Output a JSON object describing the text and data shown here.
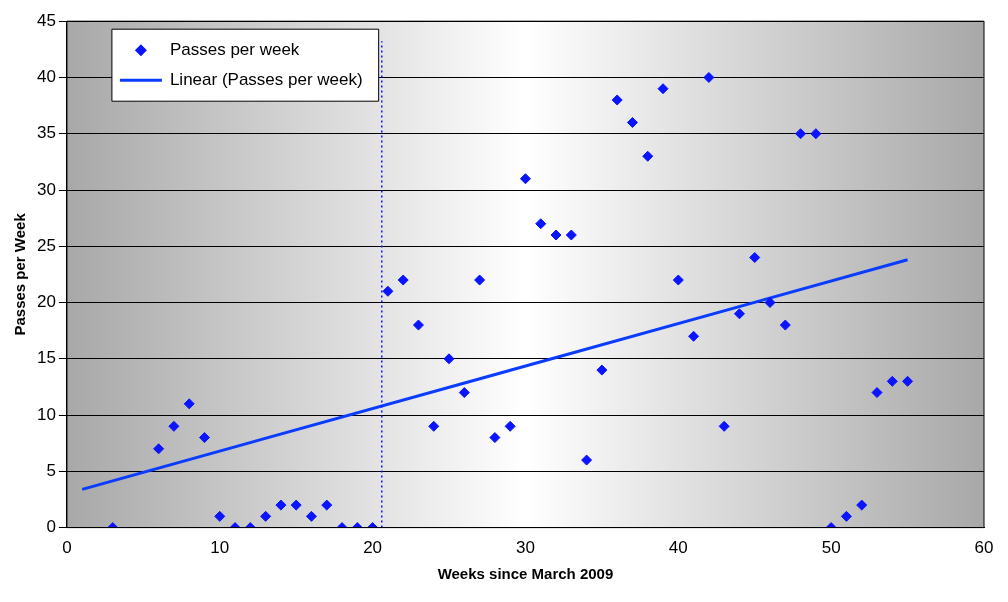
{
  "chart_data": {
    "type": "scatter",
    "xlabel": "Weeks since March 2009",
    "ylabel": "Passes per Week",
    "xlim": [
      0,
      60
    ],
    "xticks": [
      0,
      10,
      20,
      30,
      40,
      50,
      60
    ],
    "ylim": [
      0,
      45
    ],
    "yticks": [
      0,
      5,
      10,
      15,
      20,
      25,
      30,
      35,
      40,
      45
    ],
    "grid": "y",
    "legend": "top left",
    "series": [
      {
        "name": "Passes per week",
        "marker": "diamond",
        "color": "#0a14ff",
        "x": [
          3,
          6,
          7,
          8,
          9,
          10,
          11,
          12,
          13,
          14,
          15,
          16,
          17,
          18,
          19,
          20,
          21,
          22,
          23,
          24,
          25,
          26,
          27,
          28,
          29,
          30,
          31,
          32,
          33,
          34,
          35,
          36,
          37,
          38,
          39,
          40,
          41,
          42,
          43,
          44,
          45,
          46,
          47,
          48,
          49,
          50,
          51,
          52,
          53,
          54,
          55
        ],
        "values": [
          0,
          7,
          9,
          11,
          8,
          1,
          0,
          0,
          1,
          2,
          2,
          1,
          2,
          0,
          0,
          0,
          21,
          22,
          18,
          9,
          15,
          12,
          22,
          8,
          9,
          31,
          27,
          26,
          26,
          6,
          14,
          38,
          36,
          33,
          39,
          22,
          17,
          40,
          9,
          19,
          24,
          20,
          18,
          35,
          35,
          0,
          1,
          2,
          12,
          13,
          13
        ]
      },
      {
        "name": "Linear (Passes per week)",
        "type": "line",
        "color": "#0a3cff",
        "x": [
          1,
          55
        ],
        "values": [
          3.4,
          23.8
        ]
      }
    ],
    "ref_lines": [
      {
        "axis": "x",
        "value": 20.6,
        "color": "#0a14ff",
        "line_style": "dotted"
      }
    ]
  }
}
